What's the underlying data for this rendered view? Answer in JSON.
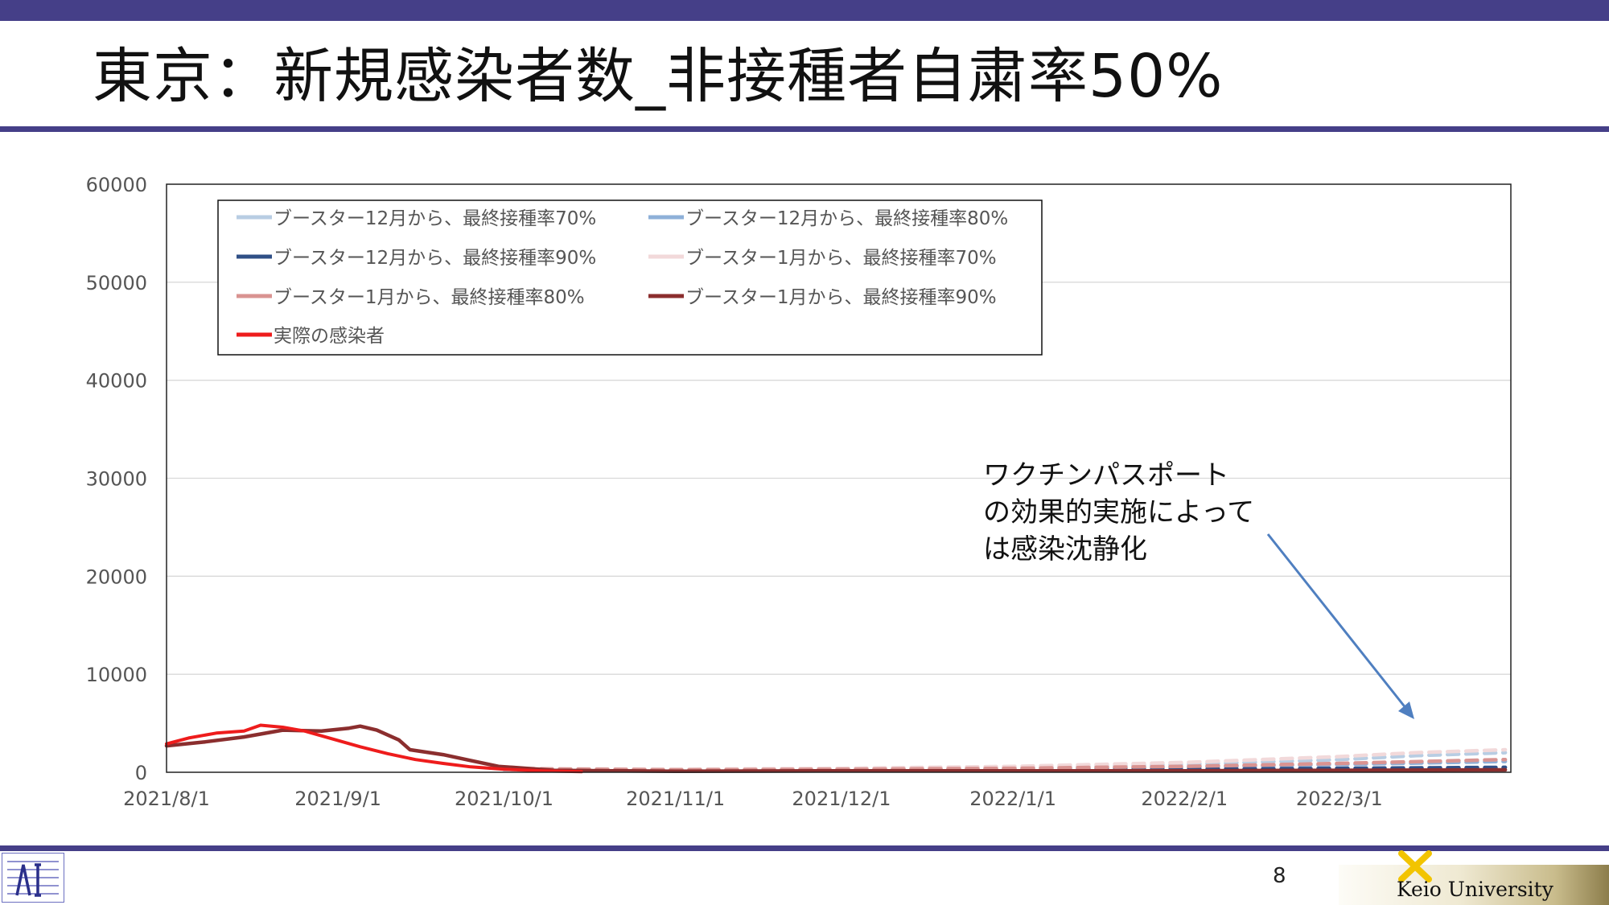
{
  "slide": {
    "title": "東京：新規感染者数_非接種者自粛率50%",
    "page_number": "8",
    "footer_logo_text": "Keio University"
  },
  "annotation": {
    "lines": [
      "ワクチンパスポート",
      "の効果的実施によって",
      "は感染沈静化"
    ],
    "arrow_color": "#4f7fc0"
  },
  "chart_data": {
    "type": "line",
    "title": "",
    "xlabel": "",
    "ylabel": "",
    "ylim": [
      0,
      60000
    ],
    "yticks": [
      "0",
      "10000",
      "20000",
      "30000",
      "40000",
      "50000",
      "60000"
    ],
    "xlim": [
      "2021-08-01",
      "2022-04-01"
    ],
    "xticks": [
      {
        "label": "2021/8/1",
        "date": "2021-08-01"
      },
      {
        "label": "2021/9/1",
        "date": "2021-09-01"
      },
      {
        "label": "2021/10/1",
        "date": "2021-10-01"
      },
      {
        "label": "2021/11/1",
        "date": "2021-11-01"
      },
      {
        "label": "2021/12/1",
        "date": "2021-12-01"
      },
      {
        "label": "2022/1/1",
        "date": "2022-01-01"
      },
      {
        "label": "2022/2/1",
        "date": "2022-02-01"
      },
      {
        "label": "2022/3/1",
        "date": "2022-03-01"
      }
    ],
    "grid": true,
    "legend_position": "top-left",
    "series": [
      {
        "name": "ブースター12月から、最終接種率70%",
        "color": "#b8cde3",
        "dashed": true,
        "points": [
          [
            "2021-10-01",
            400
          ],
          [
            "2021-11-01",
            250
          ],
          [
            "2021-12-01",
            300
          ],
          [
            "2022-01-01",
            450
          ],
          [
            "2022-02-01",
            800
          ],
          [
            "2022-03-01",
            1300
          ],
          [
            "2022-03-15",
            1700
          ],
          [
            "2022-03-31",
            2000
          ]
        ]
      },
      {
        "name": "ブースター12月から、最終接種率80%",
        "color": "#8eb0d8",
        "dashed": true,
        "points": [
          [
            "2021-10-01",
            350
          ],
          [
            "2021-11-01",
            200
          ],
          [
            "2021-12-01",
            250
          ],
          [
            "2022-01-01",
            300
          ],
          [
            "2022-02-01",
            500
          ],
          [
            "2022-03-01",
            800
          ],
          [
            "2022-03-31",
            1100
          ]
        ]
      },
      {
        "name": "ブースター12月から、最終接種率90%",
        "color": "#2f4f86",
        "dashed": true,
        "points": [
          [
            "2021-10-01",
            300
          ],
          [
            "2021-11-01",
            150
          ],
          [
            "2021-12-01",
            150
          ],
          [
            "2022-01-01",
            200
          ],
          [
            "2022-02-01",
            300
          ],
          [
            "2022-03-01",
            400
          ],
          [
            "2022-03-31",
            500
          ]
        ]
      },
      {
        "name": "ブースター1月から、最終接種率70%",
        "color": "#f2d9da",
        "dashed": true,
        "points": [
          [
            "2021-10-01",
            400
          ],
          [
            "2021-11-01",
            300
          ],
          [
            "2021-12-01",
            400
          ],
          [
            "2022-01-01",
            600
          ],
          [
            "2022-02-01",
            1000
          ],
          [
            "2022-03-01",
            1600
          ],
          [
            "2022-03-15",
            2000
          ],
          [
            "2022-03-31",
            2300
          ]
        ]
      },
      {
        "name": "ブースター1月から、最終接種率80%",
        "color": "#d99391",
        "dashed": true,
        "points": [
          [
            "2021-10-01",
            350
          ],
          [
            "2021-11-01",
            250
          ],
          [
            "2021-12-01",
            300
          ],
          [
            "2022-01-01",
            400
          ],
          [
            "2022-02-01",
            600
          ],
          [
            "2022-03-01",
            900
          ],
          [
            "2022-03-31",
            1300
          ]
        ]
      },
      {
        "name": "ブースター1月から、最終接種率90%",
        "color": "#8b2e2e",
        "dashed": false,
        "points": [
          [
            "2021-08-01",
            2700
          ],
          [
            "2021-08-08",
            3100
          ],
          [
            "2021-08-15",
            3600
          ],
          [
            "2021-08-22",
            4300
          ],
          [
            "2021-08-29",
            4200
          ],
          [
            "2021-09-03",
            4500
          ],
          [
            "2021-09-05",
            4700
          ],
          [
            "2021-09-08",
            4300
          ],
          [
            "2021-09-12",
            3300
          ],
          [
            "2021-09-14",
            2300
          ],
          [
            "2021-09-20",
            1800
          ],
          [
            "2021-09-25",
            1200
          ],
          [
            "2021-09-30",
            600
          ],
          [
            "2021-10-10",
            200
          ],
          [
            "2021-11-01",
            100
          ],
          [
            "2021-12-01",
            150
          ],
          [
            "2022-01-01",
            150
          ],
          [
            "2022-02-01",
            150
          ],
          [
            "2022-03-01",
            200
          ],
          [
            "2022-03-31",
            250
          ]
        ]
      },
      {
        "name": "実際の感染者",
        "color": "#ee1c1c",
        "dashed": false,
        "points": [
          [
            "2021-08-01",
            2900
          ],
          [
            "2021-08-05",
            3500
          ],
          [
            "2021-08-10",
            4000
          ],
          [
            "2021-08-15",
            4200
          ],
          [
            "2021-08-18",
            4800
          ],
          [
            "2021-08-22",
            4600
          ],
          [
            "2021-08-26",
            4200
          ],
          [
            "2021-08-31",
            3400
          ],
          [
            "2021-09-05",
            2600
          ],
          [
            "2021-09-10",
            1900
          ],
          [
            "2021-09-15",
            1300
          ],
          [
            "2021-09-20",
            900
          ],
          [
            "2021-09-25",
            550
          ],
          [
            "2021-10-01",
            300
          ],
          [
            "2021-10-08",
            150
          ],
          [
            "2021-10-15",
            60
          ]
        ]
      }
    ]
  }
}
